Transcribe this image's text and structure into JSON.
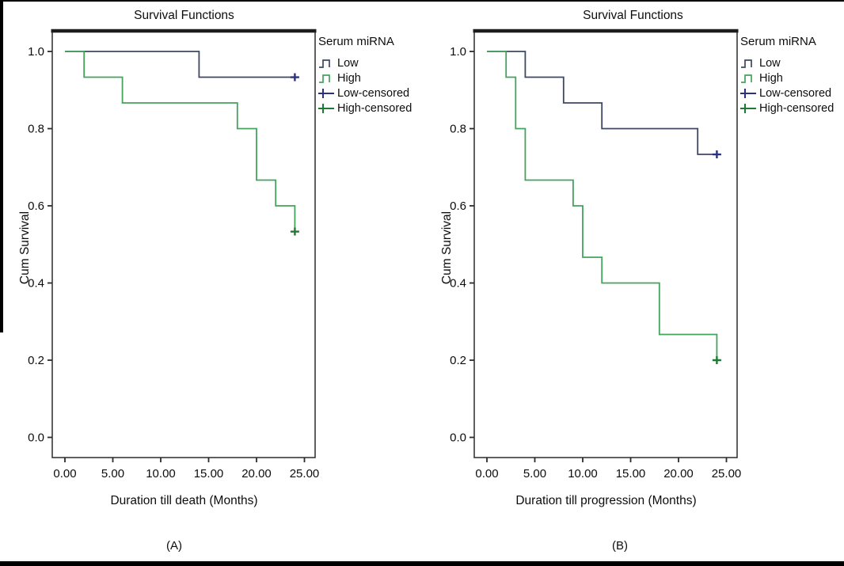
{
  "figure": {
    "caption_a": "(A)",
    "caption_b": "(B)"
  },
  "colors": {
    "low_line": "#3e4862",
    "high_line": "#44a35c",
    "low_censor": "#28327e",
    "high_censor": "#1e7a33",
    "axis": "#2b2b2b"
  },
  "chart_data": [
    {
      "type": "line",
      "subtype": "kaplan-meier-step",
      "title": "Survival Functions",
      "xlabel": "Duration till death (Months)",
      "ylabel": "Cum Survival",
      "caption": "(A)",
      "xlim": [
        0,
        26
      ],
      "ylim": [
        0.0,
        1.05
      ],
      "grid": false,
      "xticks": [
        0,
        5,
        10,
        15,
        20,
        25
      ],
      "xtick_labels": [
        "0.00",
        "5.00",
        "10.00",
        "15.00",
        "20.00",
        "25.00"
      ],
      "yticks": [
        1.0,
        0.8,
        0.6,
        0.4,
        0.2,
        0.0
      ],
      "ytick_labels": [
        "1.0",
        "0.8",
        "0.6",
        "0.4",
        "0.2",
        "0.0"
      ],
      "legend": {
        "title": "Serum miRNA",
        "position": "right-top",
        "items": [
          {
            "label": "Low",
            "glyph": "step-line",
            "color": "#3e4862"
          },
          {
            "label": "High",
            "glyph": "step-line",
            "color": "#44a35c"
          },
          {
            "label": "Low-censored",
            "glyph": "censor-cross",
            "color": "#28327e"
          },
          {
            "label": "High-censored",
            "glyph": "censor-cross",
            "color": "#1e7a33"
          }
        ]
      },
      "series": [
        {
          "name": "Low",
          "color": "#3e4862",
          "censor_color": "#28327e",
          "steps": [
            [
              0,
              1.0
            ],
            [
              14,
              1.0
            ],
            [
              14,
              0.9333
            ],
            [
              24,
              0.9333
            ]
          ],
          "censored": [
            [
              24,
              0.9333
            ]
          ]
        },
        {
          "name": "High",
          "color": "#44a35c",
          "censor_color": "#1e7a33",
          "steps": [
            [
              0,
              1.0
            ],
            [
              2,
              1.0
            ],
            [
              2,
              0.9333
            ],
            [
              6,
              0.9333
            ],
            [
              6,
              0.8667
            ],
            [
              18,
              0.8667
            ],
            [
              18,
              0.8
            ],
            [
              20,
              0.8
            ],
            [
              20,
              0.6667
            ],
            [
              22,
              0.6667
            ],
            [
              22,
              0.6
            ],
            [
              24,
              0.6
            ],
            [
              24,
              0.5333
            ]
          ],
          "censored": [
            [
              24,
              0.5333
            ]
          ]
        }
      ]
    },
    {
      "type": "line",
      "subtype": "kaplan-meier-step",
      "title": "Survival Functions",
      "xlabel": "Duration till progression (Months)",
      "ylabel": "Cum Survival",
      "caption": "(B)",
      "xlim": [
        0,
        26
      ],
      "ylim": [
        0.0,
        1.05
      ],
      "grid": false,
      "xticks": [
        0,
        5,
        10,
        15,
        20,
        25
      ],
      "xtick_labels": [
        "0.00",
        "5.00",
        "10.00",
        "15.00",
        "20.00",
        "25.00"
      ],
      "yticks": [
        1.0,
        0.8,
        0.6,
        0.4,
        0.2,
        0.0
      ],
      "ytick_labels": [
        "1.0",
        "0.8",
        "0.6",
        "0.4",
        "0.2",
        "0.0"
      ],
      "legend": {
        "title": "Serum miRNA",
        "position": "right-top",
        "items": [
          {
            "label": "Low",
            "glyph": "step-line",
            "color": "#3e4862"
          },
          {
            "label": "High",
            "glyph": "step-line",
            "color": "#44a35c"
          },
          {
            "label": "Low-censored",
            "glyph": "censor-cross",
            "color": "#28327e"
          },
          {
            "label": "High-censored",
            "glyph": "censor-cross",
            "color": "#1e7a33"
          }
        ]
      },
      "series": [
        {
          "name": "Low",
          "color": "#3e4862",
          "censor_color": "#28327e",
          "steps": [
            [
              0,
              1.0
            ],
            [
              4,
              1.0
            ],
            [
              4,
              0.9333
            ],
            [
              8,
              0.9333
            ],
            [
              8,
              0.8667
            ],
            [
              12,
              0.8667
            ],
            [
              12,
              0.8
            ],
            [
              22,
              0.8
            ],
            [
              22,
              0.7333
            ],
            [
              24,
              0.7333
            ]
          ],
          "censored": [
            [
              24,
              0.7333
            ]
          ]
        },
        {
          "name": "High",
          "color": "#44a35c",
          "censor_color": "#1e7a33",
          "steps": [
            [
              0,
              1.0
            ],
            [
              2,
              1.0
            ],
            [
              2,
              0.9333
            ],
            [
              3,
              0.9333
            ],
            [
              3,
              0.8
            ],
            [
              4,
              0.8
            ],
            [
              4,
              0.6667
            ],
            [
              9,
              0.6667
            ],
            [
              9,
              0.6
            ],
            [
              10,
              0.6
            ],
            [
              10,
              0.4667
            ],
            [
              12,
              0.4667
            ],
            [
              12,
              0.4
            ],
            [
              18,
              0.4
            ],
            [
              18,
              0.2667
            ],
            [
              24,
              0.2667
            ],
            [
              24,
              0.2
            ]
          ],
          "censored": [
            [
              24,
              0.2
            ]
          ]
        }
      ]
    }
  ]
}
